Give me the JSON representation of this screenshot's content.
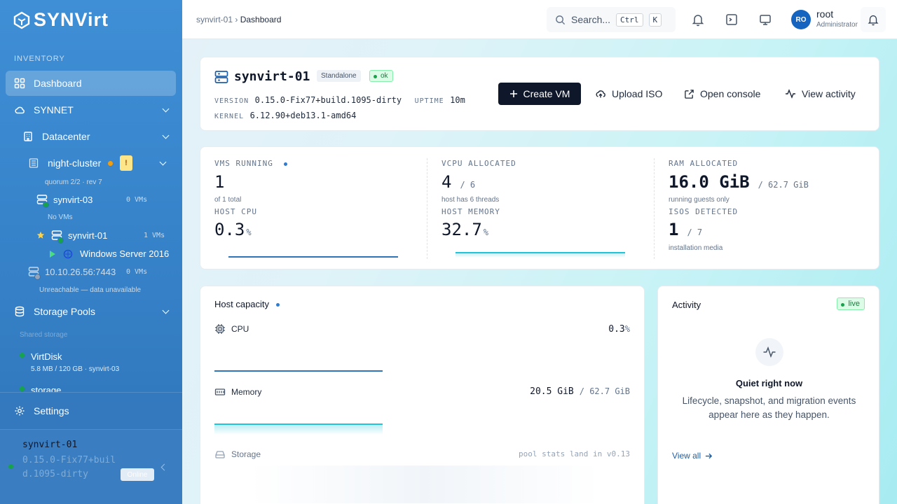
{
  "app": {
    "name": "SYNVirt"
  },
  "sidebar": {
    "section_title": "INVENTORY",
    "dashboard": "Dashboard",
    "synnet": "SYNNET",
    "datacenter": "Datacenter",
    "cluster": {
      "name": "night-cluster",
      "warning": "!",
      "sub": "quorum 2/2 · rev 7"
    },
    "node3": {
      "name": "synvirt-03",
      "vms": "0 VMs",
      "sub": "No VMs"
    },
    "node1": {
      "name": "synvirt-01",
      "vms": "1 VMs"
    },
    "vm": {
      "name": "Windows Server 2016"
    },
    "remote": {
      "name": "10.10.26.56:7443",
      "vms": "0 VMs",
      "sub": "Unreachable — data unavailable"
    },
    "storage_pools": "Storage Pools",
    "shared_storage": "Shared storage",
    "pool1": {
      "name": "VirtDisk",
      "sub": "5.8 MB / 120 GB · synvirt-03"
    },
    "pool2": {
      "name": "storage"
    },
    "settings": "Settings",
    "footer": {
      "host": "synvirt-01",
      "version": "0.15.0-Fix77+build.1095-dirty",
      "badge": "Online"
    }
  },
  "topbar": {
    "crumb_root": "synvirt-01",
    "crumb_sep": "›",
    "crumb_current": "Dashboard",
    "search_placeholder": "Search...",
    "kbd_ctrl": "Ctrl",
    "kbd_k": "K",
    "user": {
      "initials": "RO",
      "name": "root",
      "role": "Administrator"
    }
  },
  "host_card": {
    "name": "synvirt-01",
    "mode_badge": "Standalone",
    "status_badge": "ok",
    "version_label": "VERSION",
    "version": "0.15.0-Fix77+build.1095-dirty",
    "uptime_label": "UPTIME",
    "uptime": "10m",
    "kernel_label": "KERNEL",
    "kernel": "6.12.90+deb13.1-amd64",
    "create_vm": "Create VM",
    "upload_iso": "Upload ISO",
    "open_console": "Open console",
    "view_activity": "View activity"
  },
  "stats": {
    "vms_label": "VMS RUNNING",
    "vms_value": "1",
    "vms_note": "of 1 total",
    "vcpu_label": "VCPU ALLOCATED",
    "vcpu_value": "4",
    "vcpu_total": "/ 6",
    "vcpu_note": "host has 6 threads",
    "ram_label": "RAM ALLOCATED",
    "ram_value": "16.0 GiB",
    "ram_total": "/ 62.7 GiB",
    "ram_note": "running guests only",
    "cpu_label": "HOST CPU",
    "cpu_value": "0.3",
    "cpu_unit": "%",
    "mem_label": "HOST MEMORY",
    "mem_value": "32.7",
    "mem_unit": "%",
    "iso_label": "ISOS DETECTED",
    "iso_value": "1",
    "iso_total": "/ 7",
    "iso_note": "installation media"
  },
  "capacity": {
    "title": "Host capacity",
    "cpu_label": "CPU",
    "cpu_value": "0.3",
    "cpu_unit": "%",
    "mem_label": "Memory",
    "mem_value": "20.5 GiB",
    "mem_total": "/ 62.7 GiB",
    "storage_label": "Storage",
    "storage_note": "pool stats land in v0.13"
  },
  "activity": {
    "title": "Activity",
    "live_badge": "live",
    "empty_title": "Quiet right now",
    "empty_body": "Lifecycle, snapshot, and migration events appear here as they happen.",
    "view_all": "View all"
  },
  "colors": {
    "accent": "#2f7bd0",
    "teal": "#22c3d6",
    "ok_green": "#16a34a",
    "warn": "#f59e0b",
    "dark": "#0f172a"
  }
}
